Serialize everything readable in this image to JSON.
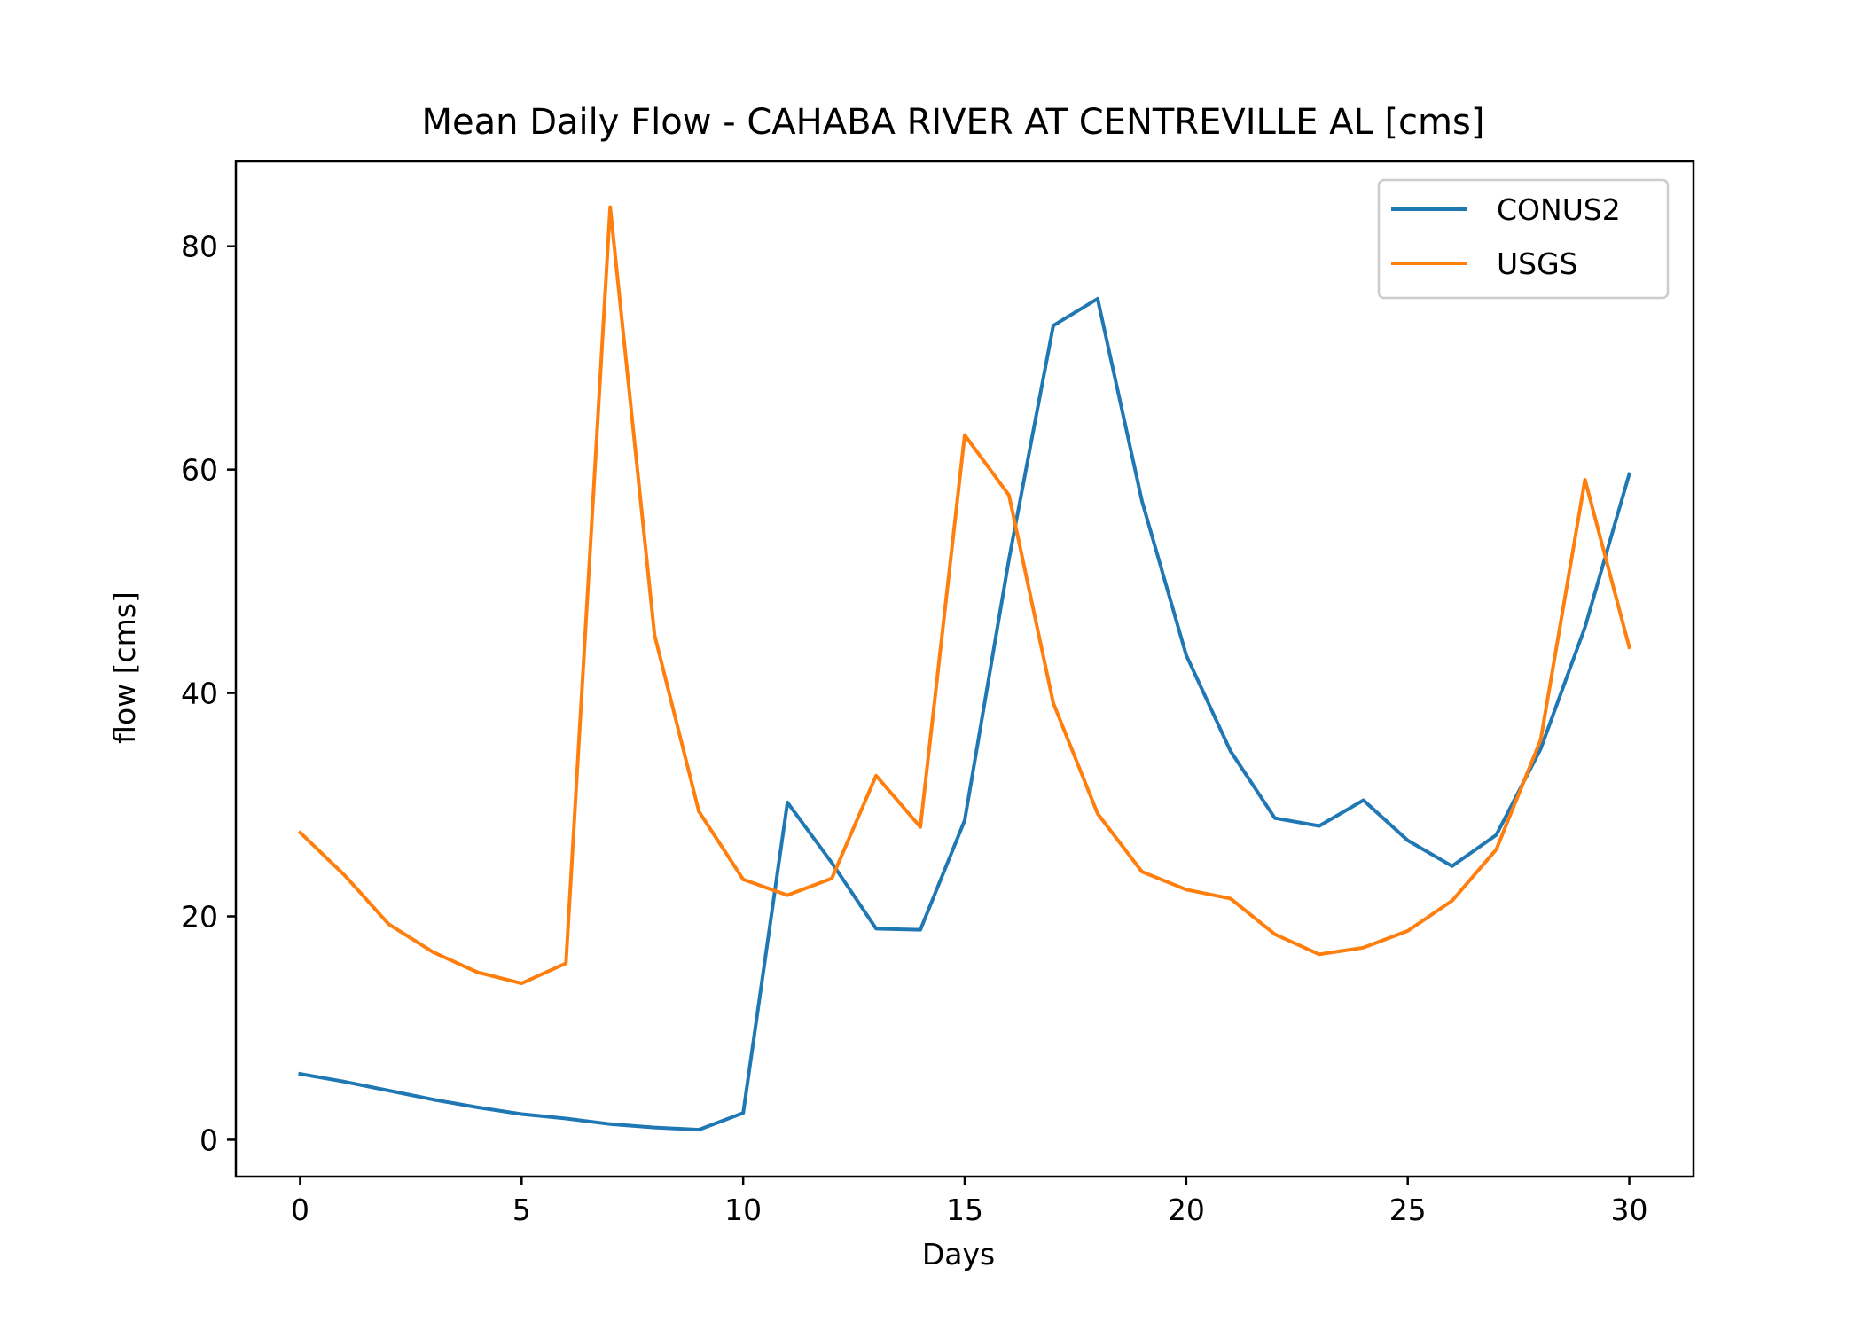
{
  "chart_data": {
    "type": "line",
    "title": "Mean Daily Flow - CAHABA RIVER AT CENTREVILLE AL [cms]",
    "xlabel": "Days",
    "ylabel": "flow [cms]",
    "xlim": [
      -1.45,
      31.45
    ],
    "ylim": [
      -3.3,
      87.6
    ],
    "xticks": [
      0,
      5,
      10,
      15,
      20,
      25,
      30
    ],
    "yticks": [
      0,
      20,
      40,
      60,
      80
    ],
    "grid": false,
    "legend_position": "top-right",
    "x": [
      0,
      1,
      2,
      3,
      4,
      5,
      6,
      7,
      8,
      9,
      10,
      11,
      12,
      13,
      14,
      15,
      16,
      17,
      18,
      19,
      20,
      21,
      22,
      23,
      24,
      25,
      26,
      27,
      28,
      29,
      30
    ],
    "series": [
      {
        "name": "CONUS2",
        "color": "#1f77b4",
        "values": [
          5.9,
          5.2,
          4.4,
          3.6,
          2.9,
          2.3,
          1.9,
          1.4,
          1.1,
          0.9,
          2.4,
          30.2,
          24.8,
          18.9,
          18.8,
          28.6,
          52.0,
          72.9,
          75.3,
          57.2,
          43.4,
          34.8,
          28.8,
          28.1,
          30.4,
          26.8,
          24.5,
          27.3,
          35.0,
          45.9,
          59.6
        ]
      },
      {
        "name": "USGS",
        "color": "#ff7f0e",
        "values": [
          27.5,
          23.7,
          19.3,
          16.8,
          15.0,
          14.0,
          15.8,
          83.5,
          45.2,
          29.4,
          23.3,
          21.9,
          23.4,
          32.6,
          28.0,
          63.1,
          57.7,
          39.1,
          29.2,
          24.0,
          22.4,
          21.6,
          18.4,
          16.6,
          17.2,
          18.7,
          21.4,
          26.0,
          35.8,
          59.1,
          44.1
        ]
      }
    ]
  }
}
